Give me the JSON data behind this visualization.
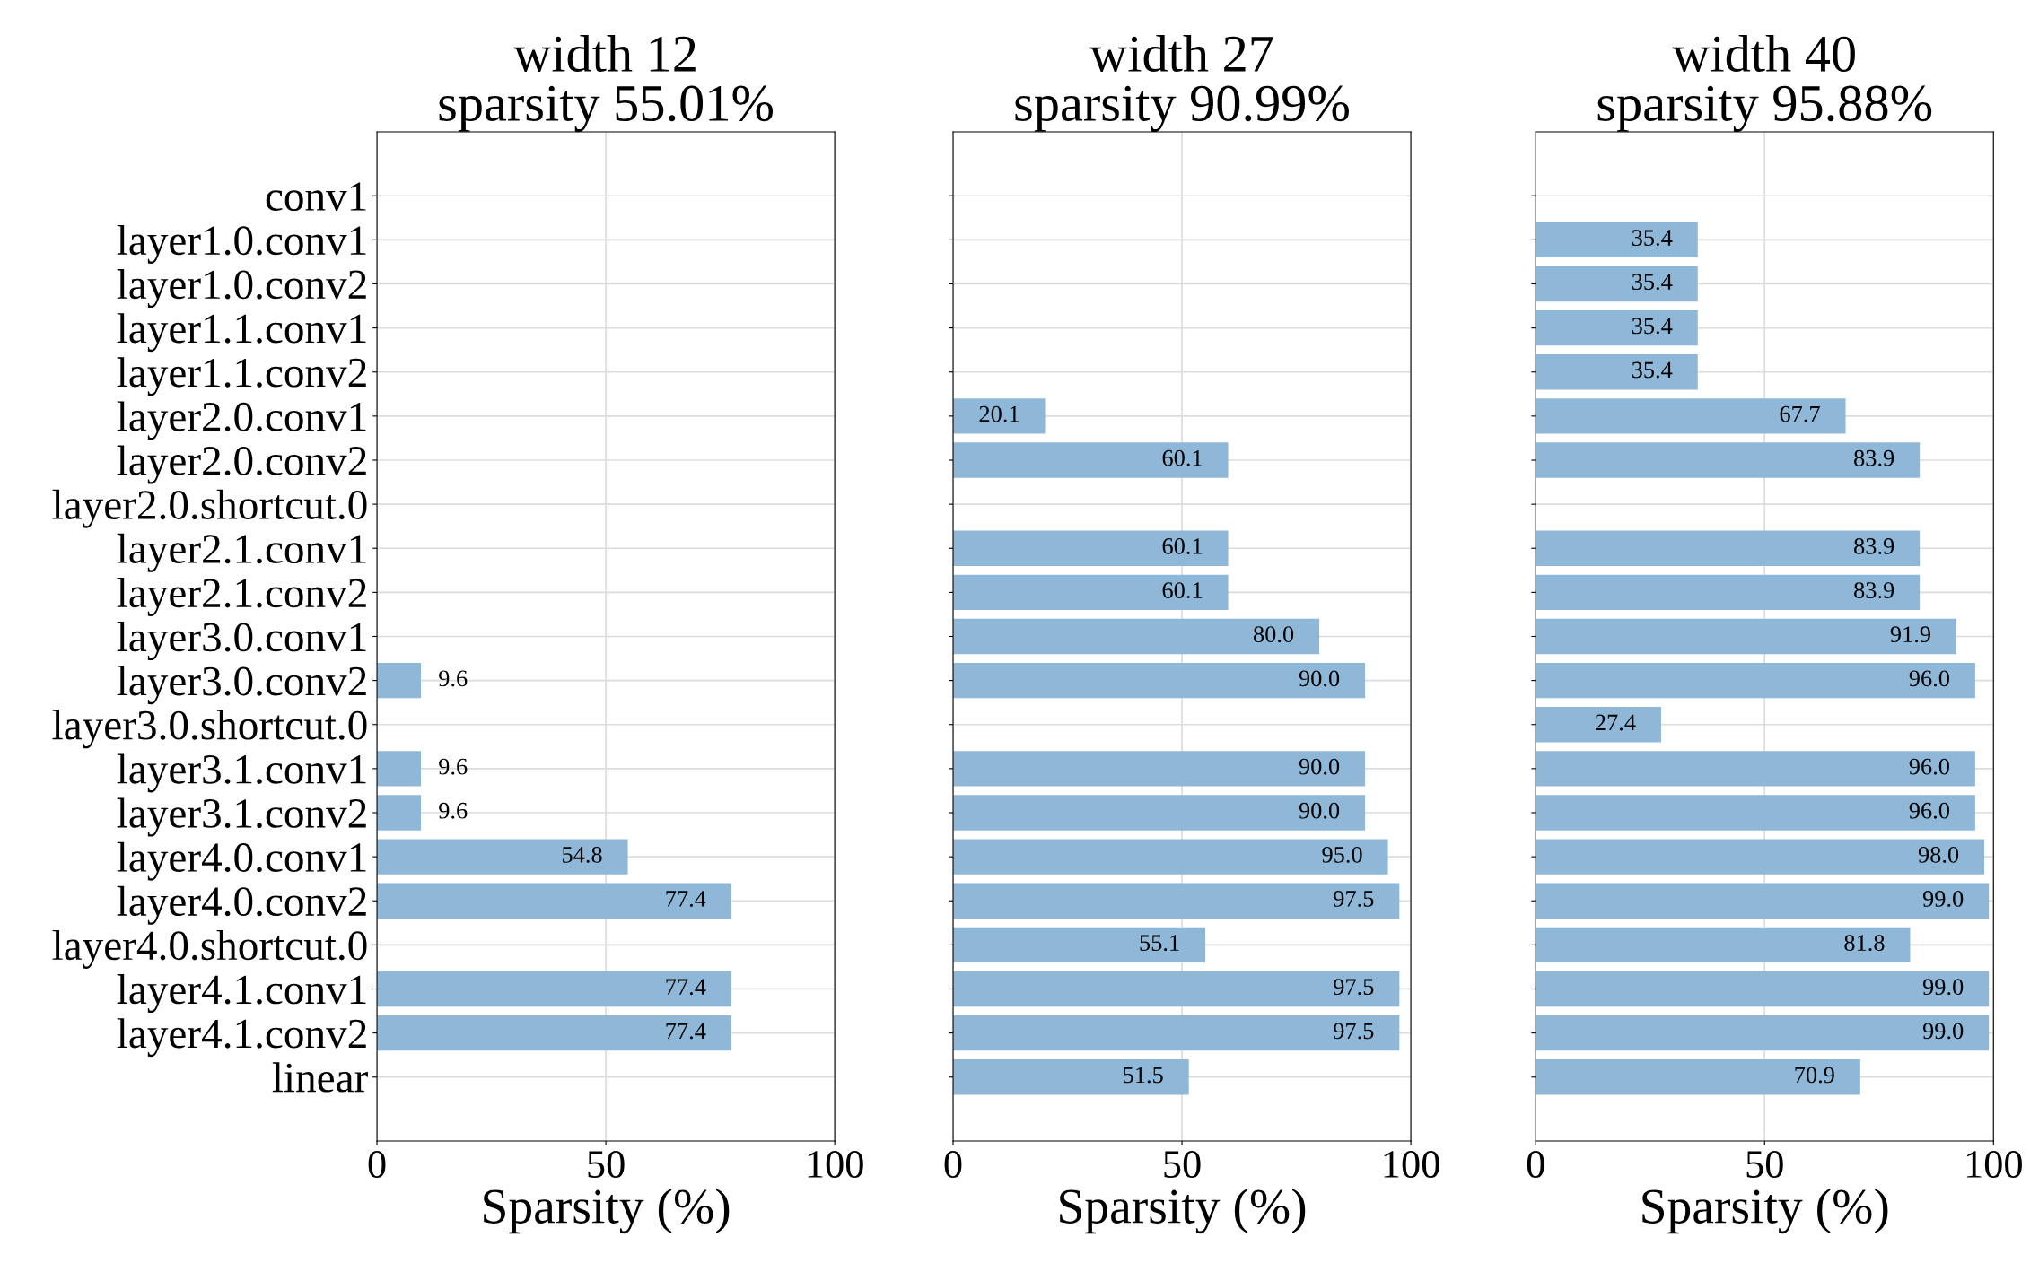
{
  "chart_data": [
    {
      "type": "bar",
      "orientation": "horizontal",
      "title": "width 12\nsparsity 55.01%",
      "xlabel": "Sparsity (%)",
      "categories": [
        "conv1",
        "layer1.0.conv1",
        "layer1.0.conv2",
        "layer1.1.conv1",
        "layer1.1.conv2",
        "layer2.0.conv1",
        "layer2.0.conv2",
        "layer2.0.shortcut.0",
        "layer2.1.conv1",
        "layer2.1.conv2",
        "layer3.0.conv1",
        "layer3.0.conv2",
        "layer3.0.shortcut.0",
        "layer3.1.conv1",
        "layer3.1.conv2",
        "layer4.0.conv1",
        "layer4.0.conv2",
        "layer4.0.shortcut.0",
        "layer4.1.conv1",
        "layer4.1.conv2",
        "linear"
      ],
      "values": [
        null,
        null,
        null,
        null,
        null,
        null,
        null,
        null,
        null,
        null,
        null,
        9.6,
        null,
        9.6,
        9.6,
        54.8,
        77.4,
        null,
        77.4,
        77.4,
        null
      ],
      "value_labels": [
        null,
        null,
        null,
        null,
        null,
        null,
        null,
        null,
        null,
        null,
        null,
        "9.6",
        null,
        "9.6",
        "9.6",
        "54.8",
        "77.4",
        null,
        "77.4",
        "77.4",
        null
      ],
      "color": "#8fb8d8",
      "xlim": [
        0,
        100
      ],
      "xticks": [
        0,
        50,
        100
      ],
      "grid": true
    },
    {
      "type": "bar",
      "orientation": "horizontal",
      "title": "width 27\nsparsity 90.99%",
      "xlabel": "Sparsity (%)",
      "values": [
        null,
        null,
        null,
        null,
        null,
        20.1,
        60.1,
        null,
        60.1,
        60.1,
        80.0,
        90.0,
        null,
        90.0,
        90.0,
        95.0,
        97.5,
        55.1,
        97.5,
        97.5,
        51.5
      ],
      "value_labels": [
        null,
        null,
        null,
        null,
        null,
        "20.1",
        "60.1",
        null,
        "60.1",
        "60.1",
        "80.0",
        "90.0",
        null,
        "90.0",
        "90.0",
        "95.0",
        "97.5",
        "55.1",
        "97.5",
        "97.5",
        "51.5"
      ],
      "color": "#8fb8d8",
      "xlim": [
        0,
        100
      ],
      "xticks": [
        0,
        50,
        100
      ],
      "grid": true,
      "tick_labels": "x"
    },
    {
      "type": "bar",
      "orientation": "horizontal",
      "title": "width 40\nsparsity 95.88%",
      "xlabel": "Sparsity (%)",
      "values": [
        null,
        35.4,
        35.4,
        35.4,
        35.4,
        67.7,
        83.9,
        null,
        83.9,
        83.9,
        91.9,
        96.0,
        27.4,
        96.0,
        96.0,
        98.0,
        99.0,
        81.8,
        99.0,
        99.0,
        70.9
      ],
      "value_labels": [
        null,
        "35.4",
        "35.4",
        "35.4",
        "35.4",
        "67.7",
        "83.9",
        null,
        "83.9",
        "83.9",
        "91.9",
        "96.0",
        "27.4",
        "96.0",
        "96.0",
        "98.0",
        "99.0",
        "81.8",
        "99.0",
        "99.0",
        "70.9"
      ],
      "color": "#8fb8d8",
      "xlim": [
        0,
        100
      ],
      "xticks": [
        0,
        50,
        100
      ],
      "grid": true,
      "tick_labels": "x"
    }
  ]
}
